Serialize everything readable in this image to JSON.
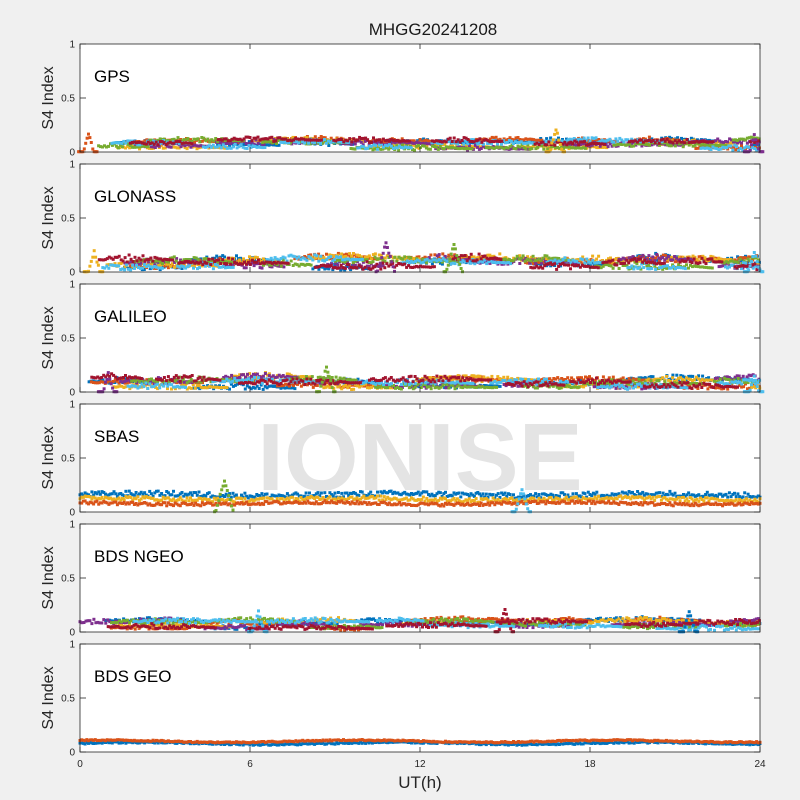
{
  "figure": {
    "title": "MHGG20241208",
    "watermark": "IONISE",
    "xlabel": "UT(h)",
    "ylabel": "S4 Index"
  },
  "colors": {
    "background": "#f0f0f0",
    "panel": "#ffffff",
    "series": [
      "#0072BD",
      "#D95319",
      "#EDB120",
      "#7E2F8E",
      "#77AC30",
      "#4DBEEE",
      "#A2142F"
    ]
  },
  "chart_data": [
    {
      "type": "scatter",
      "label": "GPS",
      "xlim": [
        0,
        24
      ],
      "ylim": [
        0,
        1
      ],
      "xticks": [
        0,
        6,
        12,
        18,
        24
      ],
      "yticks": [
        0,
        0.5,
        1
      ],
      "ytick_labels": [
        "0",
        "0.5",
        "1"
      ],
      "xtick_labels": [
        "",
        "",
        "",
        "",
        ""
      ],
      "grid": false,
      "series_count": 7,
      "baseline": 0.07,
      "spread": 0.05,
      "max_value": 0.22,
      "bumps": [
        {
          "x": 0.3,
          "y": 0.18
        },
        {
          "x": 16.8,
          "y": 0.22
        },
        {
          "x": 23.8,
          "y": 0.17
        }
      ]
    },
    {
      "type": "scatter",
      "label": "GLONASS",
      "xlim": [
        0,
        24
      ],
      "ylim": [
        0,
        1
      ],
      "xticks": [
        0,
        6,
        12,
        18,
        24
      ],
      "yticks": [
        0,
        0.5,
        1
      ],
      "ytick_labels": [
        "0",
        "0.5",
        "1"
      ],
      "xtick_labels": [
        "",
        "",
        "",
        "",
        ""
      ],
      "grid": false,
      "series_count": 7,
      "baseline": 0.08,
      "spread": 0.07,
      "max_value": 0.28,
      "bumps": [
        {
          "x": 0.5,
          "y": 0.2
        },
        {
          "x": 10.8,
          "y": 0.28
        },
        {
          "x": 13.2,
          "y": 0.26
        },
        {
          "x": 23.8,
          "y": 0.2
        }
      ]
    },
    {
      "type": "scatter",
      "label": "GALILEO",
      "xlim": [
        0,
        24
      ],
      "ylim": [
        0,
        1
      ],
      "xticks": [
        0,
        6,
        12,
        18,
        24
      ],
      "yticks": [
        0,
        0.5,
        1
      ],
      "ytick_labels": [
        "0",
        "0.5",
        "1"
      ],
      "xtick_labels": [
        "",
        "",
        "",
        "",
        ""
      ],
      "grid": false,
      "series_count": 7,
      "baseline": 0.09,
      "spread": 0.06,
      "max_value": 0.24,
      "bumps": [
        {
          "x": 1.0,
          "y": 0.18
        },
        {
          "x": 8.7,
          "y": 0.24
        },
        {
          "x": 23.8,
          "y": 0.16
        }
      ]
    },
    {
      "type": "scatter",
      "label": "SBAS",
      "xlim": [
        0,
        24
      ],
      "ylim": [
        0,
        1
      ],
      "xticks": [
        0,
        6,
        12,
        18,
        24
      ],
      "yticks": [
        0,
        0.5,
        1
      ],
      "ytick_labels": [
        "0",
        "0.5",
        "1"
      ],
      "xtick_labels": [
        "",
        "",
        "",
        "",
        ""
      ],
      "grid": false,
      "band_series": [
        {
          "color_index": 0,
          "level": 0.16,
          "spread": 0.025
        },
        {
          "color_index": 2,
          "level": 0.12,
          "spread": 0.02
        },
        {
          "color_index": 1,
          "level": 0.08,
          "spread": 0.015
        }
      ],
      "max_value": 0.3,
      "bumps": [
        {
          "x": 5.1,
          "y": 0.3
        },
        {
          "x": 15.6,
          "y": 0.22
        }
      ]
    },
    {
      "type": "scatter",
      "label": "BDS NGEO",
      "xlim": [
        0,
        24
      ],
      "ylim": [
        0,
        1
      ],
      "xticks": [
        0,
        6,
        12,
        18,
        24
      ],
      "yticks": [
        0,
        0.5,
        1
      ],
      "ytick_labels": [
        "0",
        "0.5",
        "1"
      ],
      "xtick_labels": [
        "",
        "",
        "",
        "",
        ""
      ],
      "grid": false,
      "series_count": 7,
      "baseline": 0.07,
      "spread": 0.05,
      "max_value": 0.22,
      "bumps": [
        {
          "x": 6.3,
          "y": 0.2
        },
        {
          "x": 15.0,
          "y": 0.22
        },
        {
          "x": 21.5,
          "y": 0.2
        }
      ]
    },
    {
      "type": "line",
      "label": "BDS GEO",
      "xlim": [
        0,
        24
      ],
      "ylim": [
        0,
        1
      ],
      "xticks": [
        0,
        6,
        12,
        18,
        24
      ],
      "yticks": [
        0,
        0.5,
        1
      ],
      "ytick_labels": [
        "0",
        "0.5",
        "1"
      ],
      "xtick_labels": [
        "0",
        "6",
        "12",
        "18",
        "24"
      ],
      "grid": false,
      "band_series": [
        {
          "color_index": 0,
          "level": 0.08,
          "spread": 0.008
        },
        {
          "color_index": 1,
          "level": 0.1,
          "spread": 0.006
        }
      ]
    }
  ]
}
